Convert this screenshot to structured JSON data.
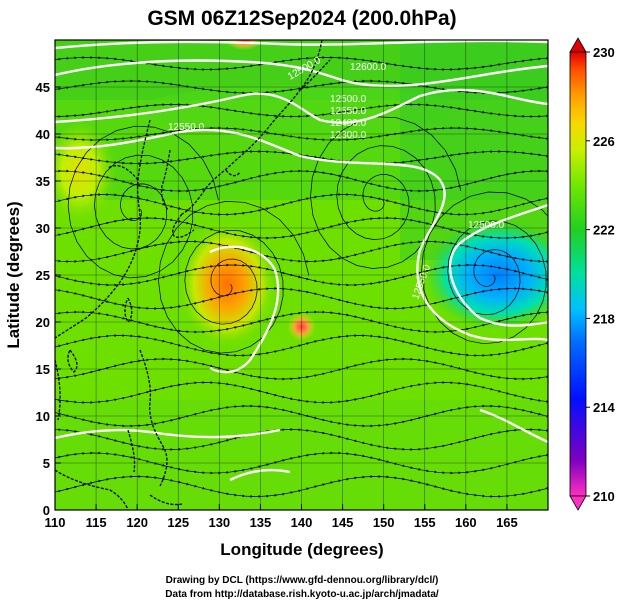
{
  "title": "GSM 06Z12Sep2024 (200.0hPa)",
  "x_axis": {
    "label": "Longitude (degrees)",
    "min": 110,
    "max": 170,
    "ticks": [
      "110",
      "115",
      "120",
      "125",
      "130",
      "135",
      "140",
      "145",
      "150",
      "155",
      "160",
      "165"
    ]
  },
  "y_axis": {
    "label": "Latitude (degrees)",
    "min": 0,
    "max": 50,
    "ticks": [
      "0",
      "5",
      "10",
      "15",
      "20",
      "25",
      "30",
      "35",
      "40",
      "45"
    ]
  },
  "colorbar": {
    "min": 210,
    "max": 230,
    "labels": [
      "230",
      "226",
      "222",
      "218",
      "214",
      "210"
    ],
    "colors": [
      "#ff40c0",
      "#8000c0",
      "#0000ff",
      "#0060ff",
      "#00c0ff",
      "#00e0a0",
      "#20c020",
      "#40e000",
      "#a0f000",
      "#f0e000",
      "#ffa000",
      "#ff5000",
      "#e00000"
    ]
  },
  "map": {
    "warm_centers": [
      {
        "lon": 131,
        "lat": 24,
        "value": 228
      },
      {
        "lon": 140,
        "lat": 19.5,
        "value": 226
      },
      {
        "lon": 113,
        "lat": 36,
        "value": 225
      },
      {
        "lon": 133,
        "lat": 50,
        "value": 229
      }
    ],
    "cold_centers": [
      {
        "lon": 164,
        "lat": 25,
        "value": 218
      }
    ],
    "vortices": [
      {
        "lon": 131,
        "lat": 24
      },
      {
        "lon": 149.5,
        "lat": 33
      },
      {
        "lon": 120,
        "lat": 32
      },
      {
        "lon": 163,
        "lat": 25
      }
    ],
    "contour_labels": [
      "12600.0",
      "12500.0",
      "12550.0",
      "12400.0",
      "12300.0",
      "12550.0",
      "12500.0",
      "12550.0",
      "12500.0"
    ]
  },
  "credits": {
    "line1": "Drawing by DCL (https://www.gfd-dennou.org/library/dcl/)",
    "line2": "Data from http://database.rish.kyoto-u.ac.jp/arch/jmadata/"
  }
}
